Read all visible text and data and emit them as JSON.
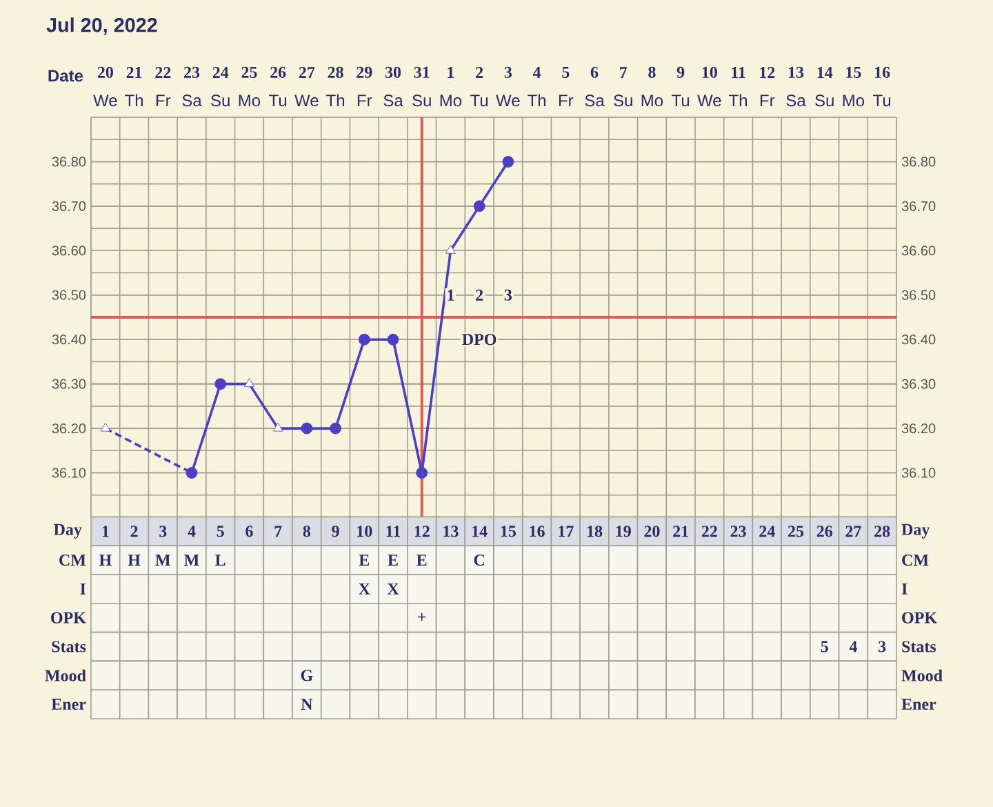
{
  "chart_data": [
    {
      "type": "line",
      "title": "Jul 20, 2022",
      "xlabel": "Date",
      "categories": [
        "20",
        "21",
        "22",
        "23",
        "24",
        "25",
        "26",
        "27",
        "28",
        "29",
        "30",
        "31",
        "1",
        "2",
        "3",
        "4",
        "5",
        "6",
        "7",
        "8",
        "9",
        "10",
        "11",
        "12",
        "13",
        "14",
        "15",
        "16"
      ],
      "annotations": [
        "We",
        "Th",
        "Fr",
        "Sa",
        "Su",
        "Mo",
        "Tu",
        "We",
        "Th",
        "Fr",
        "Sa",
        "Su",
        "Mo",
        "Tu",
        "We",
        "Th",
        "Fr",
        "Sa",
        "Su",
        "Mo",
        "Tu",
        "We",
        "Th",
        "Fr",
        "Sa",
        "Su",
        "Mo",
        "Tu",
        {
          "text": "1",
          "x": "1",
          "y": 36.5
        },
        {
          "text": "2",
          "x": "2",
          "y": 36.5
        },
        {
          "text": "3",
          "x": "3",
          "y": 36.5
        },
        {
          "text": "DPO",
          "x": "2",
          "y": 36.4
        }
      ],
      "series": [
        {
          "type": "line",
          "color": "#4b3fc4",
          "line_style": "solid",
          "values": [
            null,
            null,
            null,
            36.1,
            36.3,
            36.3,
            36.2,
            36.2,
            36.2,
            36.4,
            36.4,
            36.1,
            36.6,
            36.7,
            36.8,
            null,
            null,
            null,
            null,
            null,
            null,
            null,
            null,
            null,
            null,
            null,
            null,
            null
          ]
        },
        {
          "type": "line",
          "color": "#4b3fc4",
          "line_style": "dashed",
          "values": [
            36.2,
            null,
            null,
            36.1,
            null,
            null,
            null,
            null,
            null,
            null,
            null,
            null,
            null,
            null,
            null,
            null,
            null,
            null,
            null,
            null,
            null,
            null,
            null,
            null,
            null,
            null,
            null,
            null
          ]
        },
        {
          "type": "scatter",
          "color": "#4b3fc4",
          "marker": "circle",
          "values": [
            null,
            null,
            null,
            36.1,
            36.3,
            null,
            null,
            36.2,
            36.2,
            36.4,
            36.4,
            36.1,
            null,
            36.7,
            36.8,
            null,
            null,
            null,
            null,
            null,
            null,
            null,
            null,
            null,
            null,
            null,
            null,
            null
          ]
        },
        {
          "type": "scatter",
          "color": "#4b3fc4",
          "marker": "triangle",
          "values": [
            36.2,
            null,
            null,
            null,
            null,
            36.3,
            36.2,
            null,
            null,
            null,
            null,
            null,
            36.6,
            null,
            null,
            null,
            null,
            null,
            null,
            null,
            null,
            null,
            null,
            null,
            null,
            null,
            null,
            null
          ]
        }
      ],
      "ylim": [
        36.0,
        36.9
      ],
      "yticks": [
        {
          "value": 36.1,
          "label": "36.10"
        },
        {
          "value": 36.2,
          "label": "36.20"
        },
        {
          "value": 36.3,
          "label": "36.30"
        },
        {
          "value": 36.4,
          "label": "36.40"
        },
        {
          "value": 36.5,
          "label": "36.50"
        },
        {
          "value": 36.6,
          "label": "36.60"
        },
        {
          "value": 36.7,
          "label": "36.70"
        },
        {
          "value": 36.8,
          "label": "36.80"
        }
      ],
      "y2lim": [
        36.0,
        36.9
      ],
      "y2ticks": [
        {
          "value": 36.1,
          "label": "36.10"
        },
        {
          "value": 36.2,
          "label": "36.20"
        },
        {
          "value": 36.3,
          "label": "36.30"
        },
        {
          "value": 36.4,
          "label": "36.40"
        },
        {
          "value": 36.5,
          "label": "36.50"
        },
        {
          "value": 36.6,
          "label": "36.60"
        },
        {
          "value": 36.7,
          "label": "36.70"
        },
        {
          "value": 36.8,
          "label": "36.80"
        }
      ],
      "ref_lines": [
        {
          "axis": "y",
          "value": 36.45,
          "color": "#e05a5a"
        },
        {
          "axis": "x",
          "value": "31",
          "color": "#e05a5a"
        }
      ],
      "grid": true
    },
    {
      "type": "heatmap",
      "xlabel": "Day",
      "categories": [
        "1",
        "2",
        "3",
        "4",
        "5",
        "6",
        "7",
        "8",
        "9",
        "10",
        "11",
        "12",
        "13",
        "14",
        "15",
        "16",
        "17",
        "18",
        "19",
        "20",
        "21",
        "22",
        "23",
        "24",
        "25",
        "26",
        "27",
        "28"
      ],
      "y_categories": [
        "CM",
        "I",
        "OPK",
        "Stats",
        "Mood",
        "Ener"
      ],
      "y2_categories": [
        "CM",
        "I",
        "OPK",
        "Stats",
        "Mood",
        "Ener"
      ],
      "cells": [
        [
          null,
          null,
          null,
          null,
          null,
          null,
          null,
          null,
          null,
          null,
          null,
          null,
          null,
          null,
          null,
          null,
          null,
          null,
          null,
          null,
          null,
          null,
          null,
          null,
          null,
          null,
          null,
          null
        ],
        [
          null,
          null,
          null,
          null,
          null,
          null,
          null,
          null,
          null,
          null,
          null,
          null,
          null,
          null,
          null,
          null,
          null,
          null,
          null,
          null,
          null,
          null,
          null,
          null,
          null,
          null,
          null,
          null
        ],
        [
          null,
          null,
          null,
          null,
          null,
          null,
          null,
          null,
          null,
          null,
          null,
          null,
          null,
          null,
          null,
          null,
          null,
          null,
          null,
          null,
          null,
          null,
          null,
          null,
          null,
          null,
          null,
          null
        ],
        [
          null,
          null,
          null,
          null,
          null,
          null,
          null,
          null,
          null,
          null,
          null,
          null,
          null,
          null,
          null,
          null,
          null,
          null,
          null,
          null,
          null,
          null,
          null,
          null,
          null,
          null,
          null,
          null
        ],
        [
          null,
          null,
          null,
          null,
          null,
          null,
          null,
          null,
          null,
          null,
          null,
          null,
          null,
          null,
          null,
          null,
          null,
          null,
          null,
          null,
          null,
          null,
          null,
          null,
          null,
          null,
          null,
          null
        ],
        [
          null,
          null,
          null,
          null,
          null,
          null,
          null,
          null,
          null,
          null,
          null,
          null,
          null,
          null,
          null,
          null,
          null,
          null,
          null,
          null,
          null,
          null,
          null,
          null,
          null,
          null,
          null,
          null
        ]
      ],
      "cell_labels": [
        [
          "H",
          "H",
          "M",
          "M",
          "L",
          null,
          null,
          null,
          null,
          "E",
          "E",
          "E",
          null,
          "C",
          null,
          null,
          null,
          null,
          null,
          null,
          null,
          null,
          null,
          null,
          null,
          null,
          null,
          null
        ],
        [
          null,
          null,
          null,
          null,
          null,
          null,
          null,
          null,
          null,
          "X",
          "X",
          null,
          null,
          null,
          null,
          null,
          null,
          null,
          null,
          null,
          null,
          null,
          null,
          null,
          null,
          null,
          null,
          null
        ],
        [
          null,
          null,
          null,
          null,
          null,
          null,
          null,
          null,
          null,
          null,
          null,
          "+",
          null,
          null,
          null,
          null,
          null,
          null,
          null,
          null,
          null,
          null,
          null,
          null,
          null,
          null,
          null,
          null
        ],
        [
          null,
          null,
          null,
          null,
          null,
          null,
          null,
          null,
          null,
          null,
          null,
          null,
          null,
          null,
          null,
          null,
          null,
          null,
          null,
          null,
          null,
          null,
          null,
          null,
          null,
          "5",
          "4",
          "3"
        ],
        [
          null,
          null,
          null,
          null,
          null,
          null,
          null,
          "G",
          null,
          null,
          null,
          null,
          null,
          null,
          null,
          null,
          null,
          null,
          null,
          null,
          null,
          null,
          null,
          null,
          null,
          null,
          null,
          null
        ],
        [
          null,
          null,
          null,
          null,
          null,
          null,
          null,
          "N",
          null,
          null,
          null,
          null,
          null,
          null,
          null,
          null,
          null,
          null,
          null,
          null,
          null,
          null,
          null,
          null,
          null,
          null,
          null,
          null
        ]
      ]
    }
  ]
}
